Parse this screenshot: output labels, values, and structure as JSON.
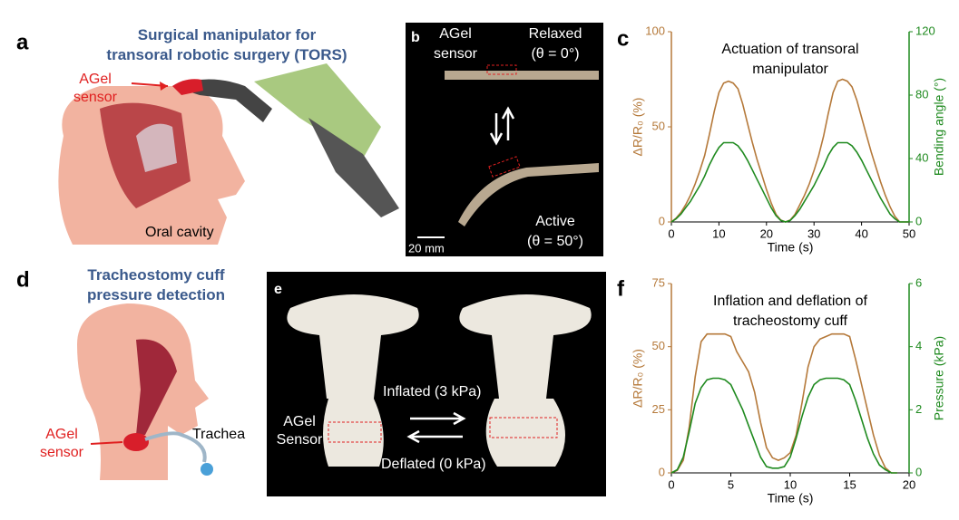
{
  "panels": {
    "a": {
      "label": "a",
      "title": [
        "Surgical manipulator for",
        "transoral robotic surgery (TORS)"
      ],
      "sensor": [
        "AGel",
        "sensor"
      ],
      "cavity": "Oral cavity"
    },
    "b": {
      "label": "b",
      "sensor": [
        "AGel",
        "sensor"
      ],
      "relaxed": [
        "Relaxed",
        "(θ = 0°)"
      ],
      "active": [
        "Active",
        "(θ = 50°)"
      ],
      "scale": "20 mm"
    },
    "c": {
      "label": "c"
    },
    "d": {
      "label": "d",
      "title": [
        "Tracheostomy cuff",
        "pressure detection"
      ],
      "sensor": [
        "AGel",
        "sensor"
      ],
      "trachea": "Trachea"
    },
    "e": {
      "label": "e",
      "inflated": "Inflated (3 kPa)",
      "deflated": "Deflated (0 kPa)",
      "sensor": [
        "AGel",
        "Sensor"
      ]
    },
    "f": {
      "label": "f"
    }
  },
  "chart_data": [
    {
      "type": "line",
      "title": [
        "Actuation of transoral",
        "manipulator"
      ],
      "xlabel": "Time (s)",
      "ylabel": "ΔR/R₀ (%)",
      "y2label": "Bending angle (°)",
      "xlim": [
        0,
        50
      ],
      "xticks": [
        0,
        10,
        20,
        30,
        40,
        50
      ],
      "ylim": [
        0,
        100
      ],
      "yticks": [
        0,
        50,
        100
      ],
      "y2lim": [
        0,
        120
      ],
      "y2ticks": [
        0,
        40,
        80,
        120
      ],
      "x": [
        0,
        1,
        2,
        3,
        4,
        5,
        6,
        7,
        8,
        9,
        10,
        11,
        12,
        13,
        14,
        15,
        16,
        17,
        18,
        19,
        20,
        21,
        22,
        23,
        24,
        25,
        26,
        27,
        28,
        29,
        30,
        31,
        32,
        33,
        34,
        35,
        36,
        37,
        38,
        39,
        40,
        41,
        42,
        43,
        44,
        45,
        46,
        47,
        48,
        49,
        50
      ],
      "series": [
        {
          "name": "ΔR/R₀",
          "color": "#b5793a",
          "values": [
            0,
            2,
            5,
            9,
            14,
            20,
            27,
            35,
            46,
            58,
            68,
            73,
            74,
            73,
            70,
            62,
            52,
            42,
            33,
            25,
            17,
            10,
            4,
            1,
            0,
            1,
            4,
            9,
            14,
            20,
            27,
            35,
            45,
            57,
            68,
            74,
            75,
            74,
            71,
            64,
            55,
            46,
            37,
            29,
            21,
            14,
            8,
            3,
            0,
            0,
            0
          ]
        },
        {
          "name": "Bending angle",
          "color": "#1f8a1f",
          "axis": "y2",
          "values": [
            0,
            2,
            5,
            9,
            13,
            18,
            23,
            29,
            36,
            42,
            47,
            50,
            50,
            50,
            48,
            44,
            39,
            33,
            27,
            21,
            15,
            9,
            4,
            1,
            0,
            1,
            4,
            8,
            13,
            18,
            23,
            29,
            35,
            42,
            47,
            50,
            50,
            50,
            48,
            44,
            39,
            33,
            27,
            21,
            15,
            10,
            5,
            2,
            0,
            0,
            0
          ]
        }
      ]
    },
    {
      "type": "line",
      "title": [
        "Inflation and deflation of",
        "tracheostomy cuff"
      ],
      "xlabel": "Time (s)",
      "ylabel": "ΔR/R₀ (%)",
      "y2label": "Pressure (kPa)",
      "xlim": [
        0,
        20
      ],
      "xticks": [
        0,
        5,
        10,
        15,
        20
      ],
      "ylim": [
        0,
        75
      ],
      "yticks": [
        0,
        25,
        50,
        75
      ],
      "y2lim": [
        0,
        6
      ],
      "y2ticks": [
        0,
        2,
        4,
        6
      ],
      "x": [
        0,
        0.5,
        1,
        1.5,
        2,
        2.5,
        3,
        3.5,
        4,
        4.5,
        5,
        5.5,
        6,
        6.5,
        7,
        7.5,
        8,
        8.5,
        9,
        9.5,
        10,
        10.5,
        11,
        11.5,
        12,
        12.5,
        13,
        13.5,
        14,
        14.5,
        15,
        15.5,
        16,
        16.5,
        17,
        17.5,
        18,
        18.5,
        19
      ],
      "series": [
        {
          "name": "ΔR/R₀",
          "color": "#b5793a",
          "values": [
            0,
            1,
            5,
            18,
            38,
            52,
            55,
            55,
            55,
            55,
            54,
            48,
            44,
            40,
            32,
            20,
            10,
            6,
            5,
            6,
            8,
            15,
            28,
            42,
            50,
            53,
            54,
            55,
            55,
            55,
            54,
            45,
            35,
            25,
            15,
            7,
            2,
            0,
            0
          ]
        },
        {
          "name": "Pressure",
          "color": "#1f8a1f",
          "axis": "y2",
          "values": [
            0,
            0.1,
            0.5,
            1.3,
            2.2,
            2.7,
            2.95,
            3,
            3,
            2.95,
            2.8,
            2.4,
            2,
            1.5,
            1,
            0.5,
            0.2,
            0.15,
            0.15,
            0.2,
            0.5,
            1.1,
            1.8,
            2.4,
            2.8,
            2.95,
            3,
            3,
            3,
            2.95,
            2.8,
            2.3,
            1.7,
            1.1,
            0.6,
            0.25,
            0.1,
            0,
            0
          ]
        }
      ]
    }
  ]
}
